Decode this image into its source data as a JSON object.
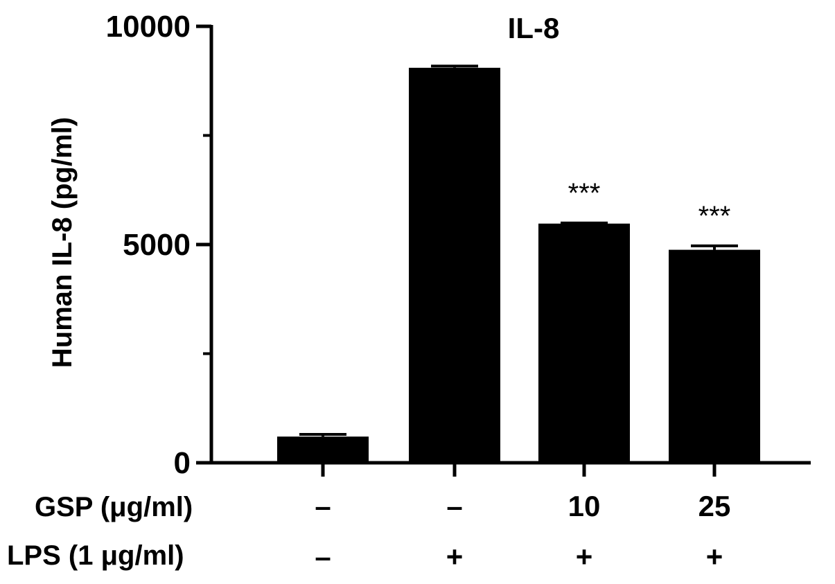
{
  "chart_data": {
    "type": "bar",
    "title": "IL-8",
    "ylabel": "Human IL-8 (pg/ml)",
    "xlabel": "",
    "ylim": [
      0,
      10000
    ],
    "yticks": [
      0,
      5000,
      10000
    ],
    "yticks_labels": [
      "0",
      "5000",
      "10000"
    ],
    "minor_yticks": [
      2500,
      7500
    ],
    "categories": [
      "1",
      "2",
      "3",
      "4"
    ],
    "values": [
      600,
      9050,
      5480,
      4880
    ],
    "errors": [
      50,
      40,
      15,
      90
    ],
    "annotations": [
      "",
      "",
      "***",
      "***"
    ],
    "bar_color": "#000000",
    "grid": false,
    "legend": "none",
    "treatment_rows": [
      {
        "label": "GSP (μg/ml)",
        "values": [
          "–",
          "–",
          "10",
          "25"
        ]
      },
      {
        "label": "LPS (1 μg/ml)",
        "values": [
          "–",
          "+",
          "+",
          "+"
        ]
      }
    ]
  }
}
